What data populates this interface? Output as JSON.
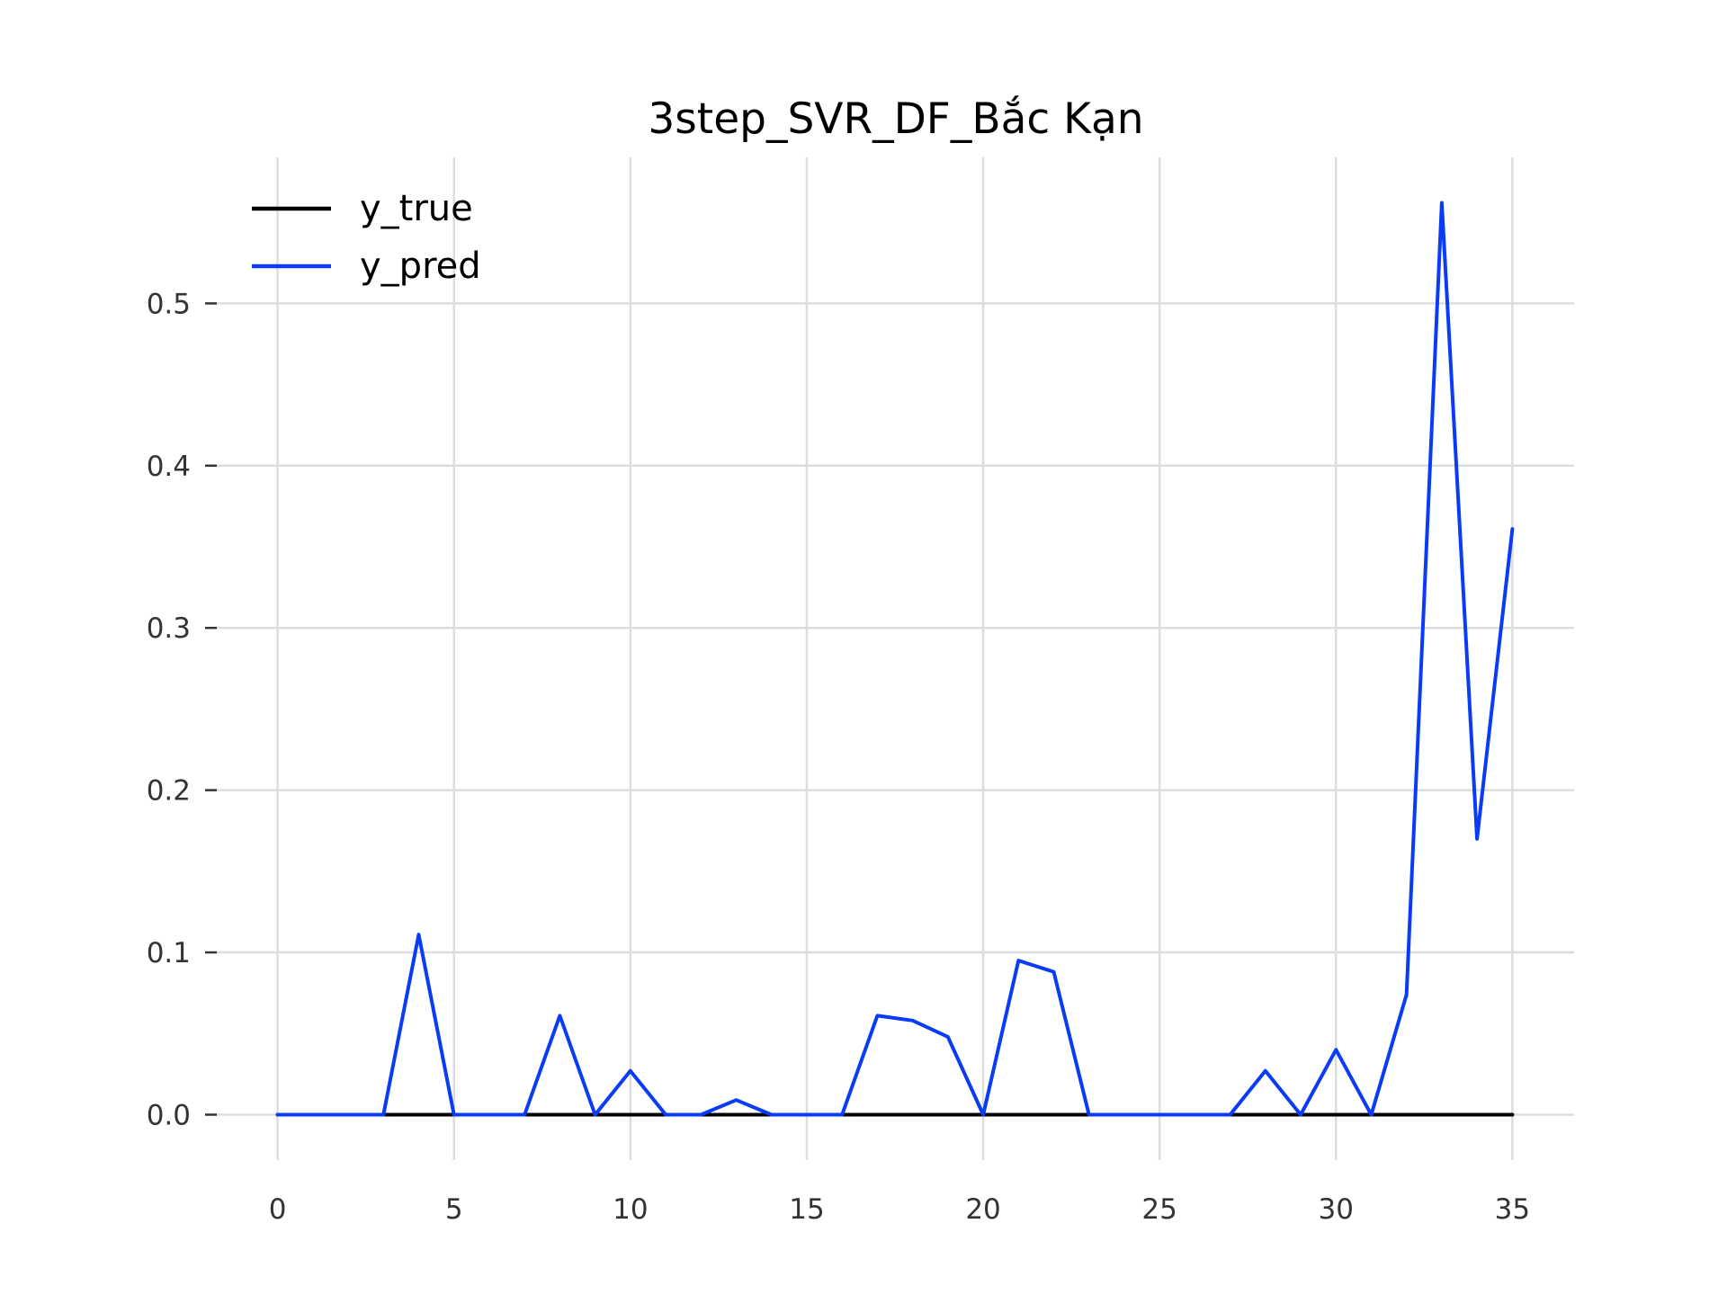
{
  "chart_data": {
    "type": "line",
    "title": "3step_SVR_DF_Bắc Kạn",
    "xlabel": "",
    "ylabel": "",
    "xlim": [
      -1.75,
      36.75
    ],
    "ylim": [
      -0.028,
      0.59
    ],
    "xticks": [
      0,
      5,
      10,
      15,
      20,
      25,
      30,
      35
    ],
    "xtick_labels": [
      "0",
      "5",
      "10",
      "15",
      "20",
      "25",
      "30",
      "35"
    ],
    "yticks": [
      0.0,
      0.1,
      0.2,
      0.3,
      0.4,
      0.5
    ],
    "ytick_labels": [
      "0.0",
      "0.1",
      "0.2",
      "0.3",
      "0.4",
      "0.5"
    ],
    "grid": true,
    "legend_position": "top-left",
    "x": [
      0,
      1,
      2,
      3,
      4,
      5,
      6,
      7,
      8,
      9,
      10,
      11,
      12,
      13,
      14,
      15,
      16,
      17,
      18,
      19,
      20,
      21,
      22,
      23,
      24,
      25,
      26,
      27,
      28,
      29,
      30,
      31,
      32,
      33,
      34,
      35
    ],
    "series": [
      {
        "name": "y_true",
        "color": "#000000",
        "values": [
          0,
          0,
          0,
          0,
          0,
          0,
          0,
          0,
          0,
          0,
          0,
          0,
          0,
          0,
          0,
          0,
          0,
          0,
          0,
          0,
          0,
          0,
          0,
          0,
          0,
          0,
          0,
          0,
          0,
          0,
          0,
          0,
          0,
          0,
          0,
          0
        ]
      },
      {
        "name": "y_pred",
        "color": "#0a3cf5",
        "values": [
          0,
          0,
          0,
          0,
          0.111,
          0,
          0,
          0,
          0.061,
          0,
          0.027,
          0,
          0,
          0.009,
          0,
          0,
          0,
          0.061,
          0.058,
          0.048,
          0,
          0.095,
          0.088,
          0,
          0,
          0,
          0,
          0,
          0.027,
          0,
          0.04,
          0,
          0.074,
          0.562,
          0.17,
          0.361
        ]
      }
    ]
  }
}
